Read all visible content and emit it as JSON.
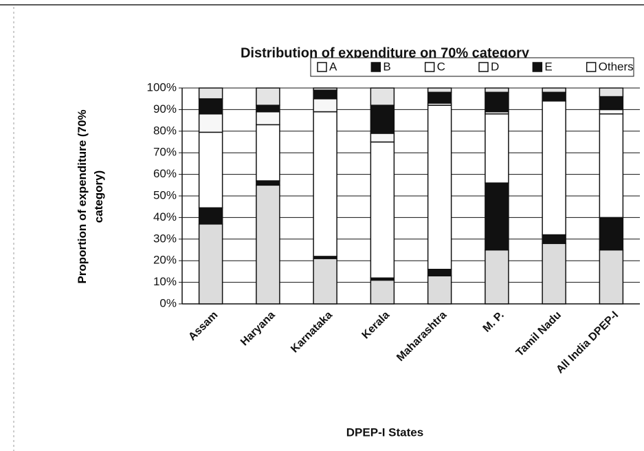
{
  "chart_data": {
    "type": "stacked_bar",
    "title": "Distribution of expenditure on 70% category",
    "x_label": "DPEP-I States",
    "y_label": "Proportion of expenditure (70% category)",
    "categories": [
      "Assam",
      "Haryana",
      "Karnataka",
      "Kerala",
      "Maharashtra",
      "M. P.",
      "Tamil Nadu",
      "All India DPEP-I"
    ],
    "series": [
      {
        "name": "A",
        "color": "#dcdcdc",
        "values": [
          37,
          55,
          21,
          11,
          13,
          25,
          28,
          25
        ]
      },
      {
        "name": "B",
        "color": "#111111",
        "values": [
          7.5,
          2,
          1,
          1,
          3,
          31,
          4,
          15
        ]
      },
      {
        "name": "C",
        "color": "#ffffff",
        "values": [
          35,
          26,
          67,
          63,
          76,
          32,
          62,
          48
        ]
      },
      {
        "name": "D",
        "color": "#f7f7f7",
        "values": [
          8.5,
          6,
          6,
          4,
          1,
          1,
          0,
          2
        ]
      },
      {
        "name": "E",
        "color": "#111111",
        "values": [
          7,
          3,
          4,
          13,
          5,
          9,
          4,
          6
        ]
      },
      {
        "name": "Others",
        "color": "#e4e4e4",
        "values": [
          5,
          8,
          1,
          8,
          2,
          2,
          2,
          4
        ]
      }
    ],
    "ylim": [
      0,
      100
    ],
    "yticks": [
      {
        "value": 0,
        "label": "0%"
      },
      {
        "value": 10,
        "label": "10%"
      },
      {
        "value": 20,
        "label": "20%"
      },
      {
        "value": 30,
        "label": "30%"
      },
      {
        "value": 40,
        "label": "40%"
      },
      {
        "value": 50,
        "label": "50%"
      },
      {
        "value": 60,
        "label": "60%"
      },
      {
        "value": 70,
        "label": "70%"
      },
      {
        "value": 80,
        "label": "80%"
      },
      {
        "value": 90,
        "label": "90%"
      },
      {
        "value": 100,
        "label": "100%"
      }
    ],
    "grid": true,
    "legend": "top"
  }
}
